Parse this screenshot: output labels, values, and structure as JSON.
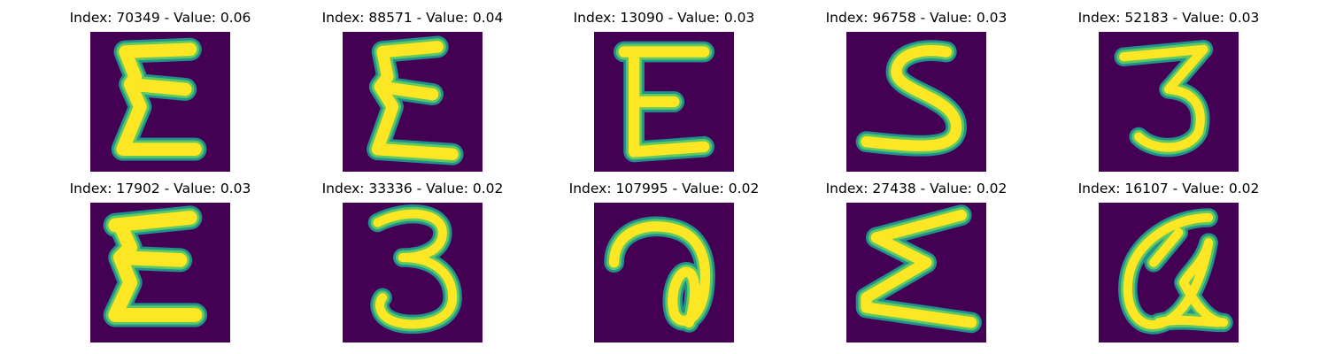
{
  "colors": {
    "background": "#440154",
    "stroke_edge": "#21918c",
    "stroke_mid": "#5ec962",
    "stroke_core": "#fde725"
  },
  "panels": [
    {
      "title": "Index: 70349 - Value: 0.06",
      "index": 70349,
      "value": 0.06,
      "glyph": "E-script"
    },
    {
      "title": "Index: 88571 - Value: 0.04",
      "index": 88571,
      "value": 0.04,
      "glyph": "E-script"
    },
    {
      "title": "Index: 13090 - Value: 0.03",
      "index": 13090,
      "value": 0.03,
      "glyph": "E"
    },
    {
      "title": "Index: 96758 - Value: 0.03",
      "index": 96758,
      "value": 0.03,
      "glyph": "S"
    },
    {
      "title": "Index: 52183 - Value: 0.03",
      "index": 52183,
      "value": 0.03,
      "glyph": "3"
    },
    {
      "title": "Index: 17902 - Value: 0.03",
      "index": 17902,
      "value": 0.03,
      "glyph": "E-script"
    },
    {
      "title": "Index: 33336 - Value: 0.02",
      "index": 33336,
      "value": 0.02,
      "glyph": "3"
    },
    {
      "title": "Index: 107995 - Value: 0.02",
      "index": 107995,
      "value": 0.02,
      "glyph": "a-loop"
    },
    {
      "title": "Index: 27438 - Value: 0.02",
      "index": 27438,
      "value": 0.02,
      "glyph": "sigma"
    },
    {
      "title": "Index: 16107 - Value: 0.02",
      "index": 16107,
      "value": 0.02,
      "glyph": "a-at"
    }
  ]
}
